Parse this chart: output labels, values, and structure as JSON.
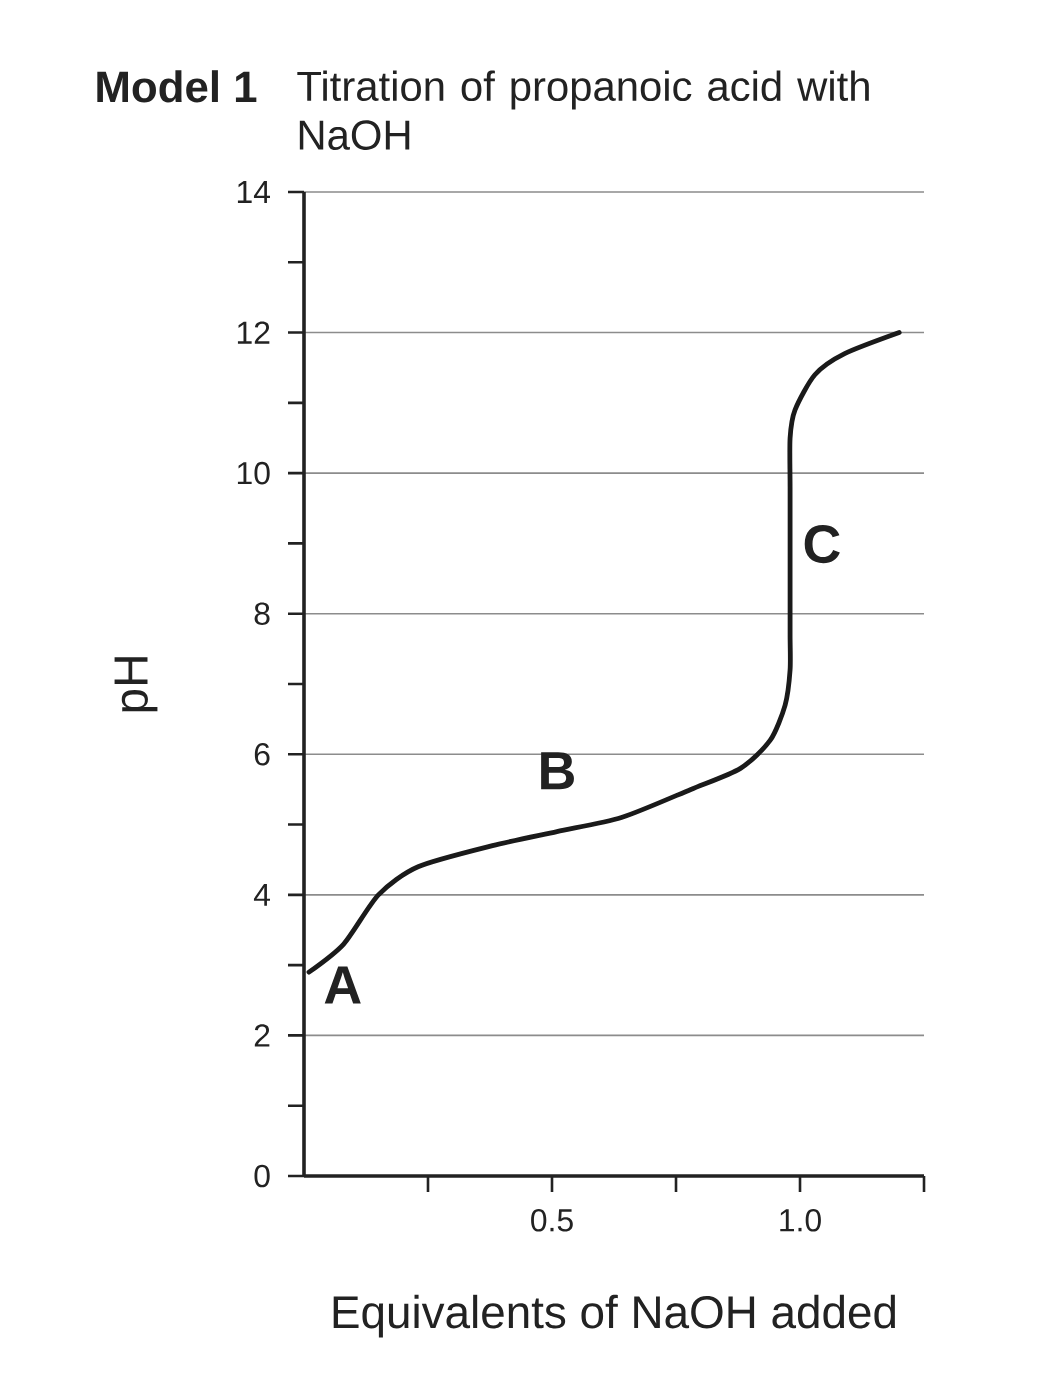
{
  "chart_data": {
    "type": "line",
    "title": "Model 1",
    "subtitle": "Titration of propanoic acid with NaOH",
    "xlabel": "Equivalents of NaOH added",
    "ylabel": "pH",
    "series": [
      {
        "color": "#1a1a1a",
        "x": [
          0.01,
          0.08,
          0.15,
          0.23,
          0.38,
          0.51,
          0.64,
          0.78,
          0.88,
          0.94,
          0.97,
          0.98,
          0.98,
          0.98,
          0.98,
          0.98,
          0.99,
          1.03,
          1.09,
          1.2
        ],
        "values": [
          2.9,
          3.3,
          4.0,
          4.4,
          4.7,
          4.9,
          5.1,
          5.5,
          5.8,
          6.2,
          6.7,
          7.2,
          7.7,
          8.6,
          9.8,
          10.5,
          10.9,
          11.4,
          11.7,
          12.0
        ]
      }
    ],
    "annotations": [
      {
        "text": "A",
        "x": 0.01,
        "y": 2.9
      },
      {
        "text": "B",
        "x": 0.51,
        "y": 4.9
      },
      {
        "text": "C",
        "x": 0.98,
        "y": 8.6
      }
    ],
    "xlim": [
      0,
      1.25
    ],
    "ylim": [
      0,
      14
    ],
    "xticks": [
      {
        "value": 0.25,
        "label": null
      },
      0.5,
      {
        "value": 0.75,
        "label": null
      },
      {
        "value": 1,
        "label": "1.0"
      },
      {
        "value": 1.25,
        "label": null
      }
    ],
    "yticks": [
      0,
      {
        "value": 1,
        "label": null
      },
      2,
      {
        "value": 3,
        "label": null
      },
      4,
      {
        "value": 5,
        "label": null
      },
      6,
      {
        "value": 7,
        "label": null
      },
      8,
      {
        "value": 9,
        "label": null
      },
      10,
      {
        "value": 11,
        "label": null
      },
      12,
      {
        "value": 13,
        "label": null
      },
      14
    ],
    "grid": "y",
    "line_style": "solid"
  }
}
